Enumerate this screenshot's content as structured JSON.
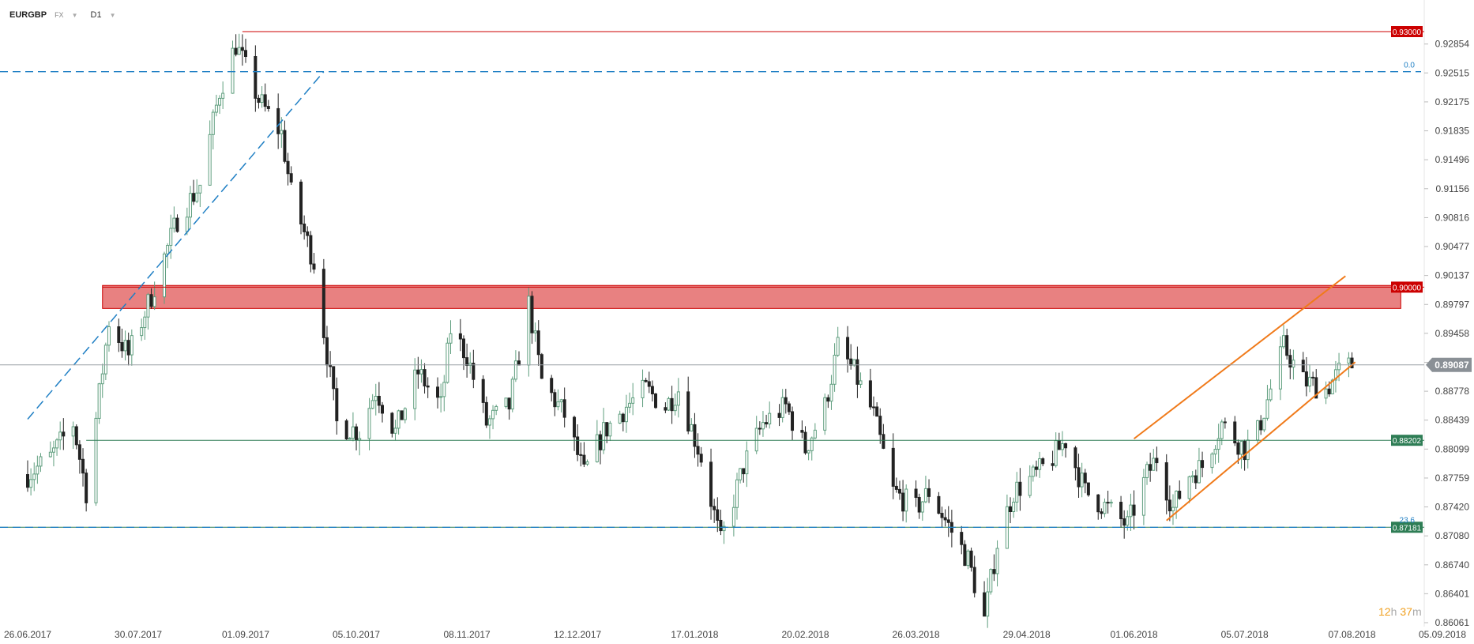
{
  "header": {
    "symbol": "EURGBP",
    "market": "FX",
    "timeframe": "D1"
  },
  "colors": {
    "bull": "#5f9e7e",
    "bear": "#222222",
    "resistance": "#cc0000",
    "support": "#2e7d55",
    "fib": "#1f7fc4",
    "trend": "#f07a1a",
    "zone": "#e57373",
    "price_badge": "#8a9096"
  },
  "chart_data": {
    "type": "candlestick",
    "ylim": [
      0.86061,
      0.93
    ],
    "y_ticks": [
      "0.92854",
      "0.92515",
      "0.92175",
      "0.91835",
      "0.91496",
      "0.91156",
      "0.90816",
      "0.90477",
      "0.90137",
      "0.89797",
      "0.89458",
      "0.89118",
      "0.88778",
      "0.88439",
      "0.88099",
      "0.87759",
      "0.87420",
      "0.87080",
      "0.86740",
      "0.86401",
      "0.86061"
    ],
    "x_ticks": [
      "26.06.2017",
      "30.07.2017",
      "01.09.2017",
      "05.10.2017",
      "08.11.2017",
      "12.12.2017",
      "17.01.2018",
      "20.02.2018",
      "26.03.2018",
      "29.04.2018",
      "01.06.2018",
      "05.07.2018",
      "07.08.2018",
      "05.09.2018"
    ],
    "x_range": [
      "2017-06-26",
      "2018-09-05"
    ],
    "current_price": "0.89087",
    "levels": [
      {
        "name": "resistance-top",
        "value": "0.93000",
        "color": "#cc0000"
      },
      {
        "name": "resistance-mid",
        "value": "0.90000",
        "color": "#cc0000"
      },
      {
        "name": "support-1",
        "value": "0.88202",
        "color": "#2e7d55"
      },
      {
        "name": "support-2",
        "value": "0.87181",
        "color": "#2e7d55"
      }
    ],
    "fib": {
      "level_0": "0.0",
      "level_236": "23.6",
      "high": 0.9253,
      "low": 0.8718
    },
    "zone": {
      "from": 0.8975,
      "to": 0.9002,
      "start": "2017-07-19",
      "end": "2018-08-22"
    },
    "fib_trendline": {
      "start": [
        "2017-06-26",
        0.8845
      ],
      "end": [
        "2017-09-25",
        0.9253
      ]
    },
    "channel": {
      "upper": {
        "start": [
          "2018-06-01",
          0.8822
        ],
        "end": [
          "2018-08-05",
          0.9013
        ]
      },
      "lower": {
        "start": [
          "2018-06-11",
          0.8726
        ],
        "end": [
          "2018-08-08",
          0.8912
        ]
      }
    },
    "timer": {
      "hours": "12",
      "h_unit": "h",
      "minutes": "37",
      "m_unit": "m"
    },
    "anchors": [
      [
        "2017-06-26",
        0.878
      ],
      [
        "2017-07-03",
        0.88
      ],
      [
        "2017-07-10",
        0.884
      ],
      [
        "2017-07-14",
        0.876
      ],
      [
        "2017-07-21",
        0.896
      ],
      [
        "2017-07-27",
        0.892
      ],
      [
        "2017-08-03",
        0.899
      ],
      [
        "2017-08-11",
        0.908
      ],
      [
        "2017-08-18",
        0.912
      ],
      [
        "2017-08-24",
        0.923
      ],
      [
        "2017-08-29",
        0.9285
      ],
      [
        "2017-09-05",
        0.922
      ],
      [
        "2017-09-12",
        0.918
      ],
      [
        "2017-09-15",
        0.911
      ],
      [
        "2017-09-22",
        0.903
      ],
      [
        "2017-09-29",
        0.884
      ],
      [
        "2017-10-06",
        0.883
      ],
      [
        "2017-10-11",
        0.888
      ],
      [
        "2017-10-17",
        0.883
      ],
      [
        "2017-10-24",
        0.89
      ],
      [
        "2017-10-31",
        0.886
      ],
      [
        "2017-11-03",
        0.895
      ],
      [
        "2017-11-08",
        0.892
      ],
      [
        "2017-11-14",
        0.884
      ],
      [
        "2017-11-21",
        0.886
      ],
      [
        "2017-11-27",
        0.898
      ],
      [
        "2017-12-01",
        0.889
      ],
      [
        "2017-12-08",
        0.885
      ],
      [
        "2017-12-14",
        0.878
      ],
      [
        "2017-12-20",
        0.883
      ],
      [
        "2017-12-27",
        0.886
      ],
      [
        "2018-01-02",
        0.888
      ],
      [
        "2018-01-08",
        0.886
      ],
      [
        "2018-01-12",
        0.888
      ],
      [
        "2018-01-19",
        0.88
      ],
      [
        "2018-01-25",
        0.87
      ],
      [
        "2018-02-01",
        0.879
      ],
      [
        "2018-02-07",
        0.884
      ],
      [
        "2018-02-14",
        0.886
      ],
      [
        "2018-02-20",
        0.881
      ],
      [
        "2018-02-26",
        0.886
      ],
      [
        "2018-03-02",
        0.893
      ],
      [
        "2018-03-07",
        0.89
      ],
      [
        "2018-03-13",
        0.885
      ],
      [
        "2018-03-19",
        0.876
      ],
      [
        "2018-03-26",
        0.874
      ],
      [
        "2018-03-30",
        0.876
      ],
      [
        "2018-04-05",
        0.872
      ],
      [
        "2018-04-11",
        0.868
      ],
      [
        "2018-04-16",
        0.861
      ],
      [
        "2018-04-20",
        0.87
      ],
      [
        "2018-04-25",
        0.876
      ],
      [
        "2018-05-02",
        0.878
      ],
      [
        "2018-05-07",
        0.88
      ],
      [
        "2018-05-11",
        0.882
      ],
      [
        "2018-05-17",
        0.876
      ],
      [
        "2018-05-24",
        0.874
      ],
      [
        "2018-05-30",
        0.872
      ],
      [
        "2018-06-05",
        0.878
      ],
      [
        "2018-06-08",
        0.88
      ],
      [
        "2018-06-13",
        0.874
      ],
      [
        "2018-06-18",
        0.878
      ],
      [
        "2018-06-22",
        0.879
      ],
      [
        "2018-06-28",
        0.884
      ],
      [
        "2018-07-05",
        0.881
      ],
      [
        "2018-07-09",
        0.883
      ],
      [
        "2018-07-13",
        0.888
      ],
      [
        "2018-07-17",
        0.893
      ],
      [
        "2018-07-23",
        0.889
      ],
      [
        "2018-07-30",
        0.888
      ],
      [
        "2018-08-03",
        0.89
      ],
      [
        "2018-08-07",
        0.8909
      ]
    ]
  }
}
